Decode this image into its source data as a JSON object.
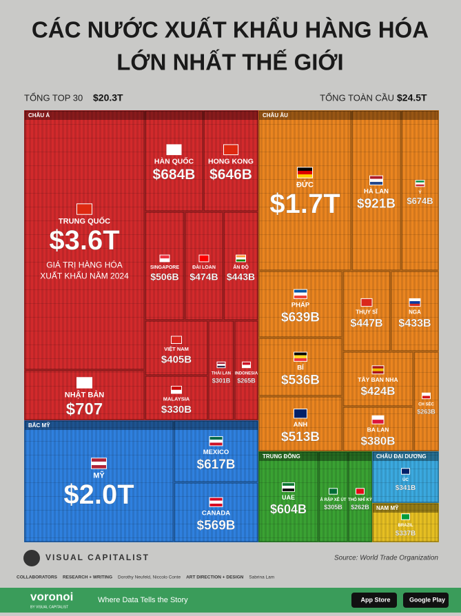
{
  "chart_data": {
    "type": "treemap",
    "title_lines": [
      "CÁC NƯỚC XUẤT KHẨU HÀNG HÓA",
      "LỚN NHẤT THẾ GIỚI"
    ],
    "totals": [
      {
        "label": "TỔNG TOP 30",
        "value": "$20.3T"
      },
      {
        "label": "TỔNG TOÀN CẦU",
        "value": "$24.5T"
      }
    ],
    "regions": [
      {
        "name": "CHÂU Á",
        "color": "#d22a2c",
        "countries": [
          {
            "name": "TRUNG QUỐC",
            "value": 3600,
            "value_label": "$3.6T",
            "note": [
              "GIÁ TRỊ HÀNG HÓA",
              "XUẤT KHẨU NĂM 2024"
            ]
          },
          {
            "name": "HÀN QUỐC",
            "value": 684,
            "value_label": "$684B"
          },
          {
            "name": "HONG KONG",
            "value": 646,
            "value_label": "$646B"
          },
          {
            "name": "SINGAPORE",
            "value": 506,
            "value_label": "$506B"
          },
          {
            "name": "ĐÀI LOAN",
            "value": 474,
            "value_label": "$474B"
          },
          {
            "name": "ẤN ĐỘ",
            "value": 443,
            "value_label": "$443B"
          },
          {
            "name": "VIỆT NAM",
            "value": 405,
            "value_label": "$405B"
          },
          {
            "name": "MALAYSIA",
            "value": 330,
            "value_label": "$330B"
          },
          {
            "name": "THÁI LAN",
            "value": 301,
            "value_label": "$301B"
          },
          {
            "name": "INDONESIA",
            "value": 265,
            "value_label": "$265B"
          },
          {
            "name": "NHẬT BẢN",
            "value": 707,
            "value_label": "$707"
          }
        ]
      },
      {
        "name": "CHÂU ÂU",
        "color": "#ea8520",
        "countries": [
          {
            "name": "ĐỨC",
            "value": 1700,
            "value_label": "$1.7T"
          },
          {
            "name": "HÀ LAN",
            "value": 921,
            "value_label": "$921B"
          },
          {
            "name": "Ý",
            "value": 674,
            "value_label": "$674B"
          },
          {
            "name": "PHÁP",
            "value": 639,
            "value_label": "$639B"
          },
          {
            "name": "THỤY SĨ",
            "value": 447,
            "value_label": "$447B"
          },
          {
            "name": "NGA",
            "value": 433,
            "value_label": "$433B"
          },
          {
            "name": "BỈ",
            "value": 536,
            "value_label": "$536B"
          },
          {
            "name": "TÂY BAN NHA",
            "value": 424,
            "value_label": "$424B"
          },
          {
            "name": "CH SÉC",
            "value": 263,
            "value_label": "$263B"
          },
          {
            "name": "ANH",
            "value": 513,
            "value_label": "$513B"
          },
          {
            "name": "BA LAN",
            "value": 380,
            "value_label": "$380B"
          }
        ]
      },
      {
        "name": "BẮC MỸ",
        "color": "#2f80de",
        "countries": [
          {
            "name": "MỸ",
            "value": 2000,
            "value_label": "$2.0T"
          },
          {
            "name": "MEXICO",
            "value": 617,
            "value_label": "$617B"
          },
          {
            "name": "CANADA",
            "value": 569,
            "value_label": "$569B"
          }
        ]
      },
      {
        "name": "TRUNG ĐÔNG",
        "color": "#3aa233",
        "countries": [
          {
            "name": "UAE",
            "value": 604,
            "value_label": "$604B"
          },
          {
            "name": "Ả RẬP XÊ ÚT",
            "value": 305,
            "value_label": "$305B"
          },
          {
            "name": "THỔ NHĨ KỲ",
            "value": 262,
            "value_label": "$262B"
          }
        ]
      },
      {
        "name": "CHÂU ĐẠI DƯƠNG",
        "color": "#3ba9df",
        "countries": [
          {
            "name": "ÚC",
            "value": 341,
            "value_label": "$341B"
          }
        ]
      },
      {
        "name": "NAM MỸ",
        "color": "#e6bf22",
        "countries": [
          {
            "name": "BRAZIL",
            "value": 337,
            "value_label": "$337B"
          }
        ]
      }
    ]
  },
  "footer": {
    "brand": "VISUAL CAPITALIST",
    "source": "Source: World Trade Organization",
    "credits": [
      "COLLABORATORS",
      "RESEARCH + WRITING",
      "Dorothy Neufeld, Niccolo Conte",
      "ART DIRECTION + DESIGN",
      "Sabrina Lam"
    ],
    "partner": "voronoi",
    "partner_sub": "BY VISUAL CAPITALIST",
    "tagline": "Where Data Tells the Story",
    "stores": [
      "App Store",
      "Google Play"
    ]
  }
}
